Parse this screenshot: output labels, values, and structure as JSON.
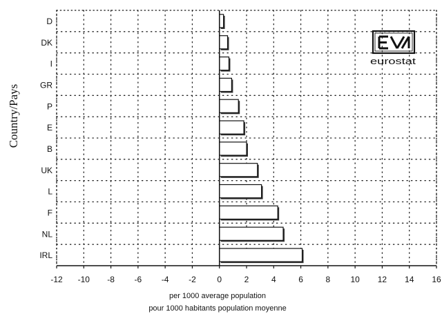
{
  "chart_data": {
    "type": "bar",
    "orientation": "horizontal",
    "title": "",
    "ylabel": "Country/Pays",
    "xlabel": "per 1000 average population",
    "xlabel_2": "pour 1000 habitants population moyenne",
    "categories": [
      "D",
      "DK",
      "I",
      "GR",
      "P",
      "E",
      "B",
      "UK",
      "L",
      "F",
      "NL",
      "IRL"
    ],
    "values": [
      0.3,
      0.6,
      0.7,
      0.9,
      1.4,
      1.8,
      2.0,
      2.8,
      3.1,
      4.3,
      4.7,
      6.1
    ],
    "xlim": [
      -12,
      16
    ],
    "xticks": [
      -12,
      -10,
      -8,
      -6,
      -4,
      -2,
      0,
      2,
      4,
      6,
      8,
      10,
      12,
      14,
      16
    ],
    "grid": true,
    "bar_color": "#ffffff",
    "bar_edge_color": "#111111",
    "logo": {
      "name": "eurostat-logo",
      "text": "eurostat"
    }
  }
}
